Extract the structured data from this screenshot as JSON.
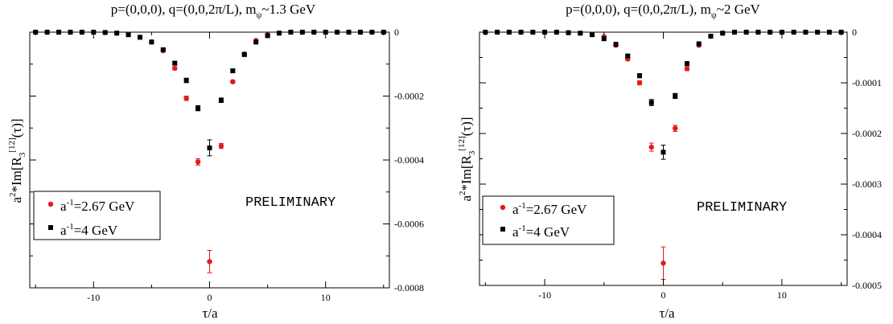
{
  "colors": {
    "red": "#e41a1c",
    "black": "#000000"
  },
  "chart_data": [
    {
      "type": "scatter",
      "title": "p=(0,0,0), q=(0,0,2π/L), m_ψ~1.3 GeV",
      "title_parts": {
        "main": "p=(0,0,0), q=(0,0,2π/L), m",
        "sub": "ψ",
        "tail": "~1.3 GeV"
      },
      "xlabel": "τ/a",
      "ylabel_parts": {
        "pre": "a",
        "sup1": "2",
        "mid": "*Im[R",
        "sub": "3",
        "sup2": "[12]",
        "tail": "(τ)]"
      },
      "xlim": [
        -15.5,
        15.5
      ],
      "ylim": [
        -0.0008,
        0.0
      ],
      "x_ticks": [
        -10,
        0,
        10
      ],
      "x_tick_labels": [
        "-10",
        "0",
        "10"
      ],
      "y_ticks": [
        0,
        -0.0002,
        -0.0004,
        -0.0006,
        -0.0008
      ],
      "y_tick_labels": [
        "0",
        "-0.0002",
        "-0.0004",
        "-0.0006",
        "-0.0008"
      ],
      "y_minor_ticks": [
        -0.0001,
        -0.0003,
        -0.0005,
        -0.0007
      ],
      "y_axis_side": "right",
      "grid": false,
      "legend_placement": "lower-left",
      "annotation": "PRELIMINARY",
      "series": [
        {
          "name": "a^-1=2.67 GeV",
          "legend_parts": {
            "pre": "a",
            "sup": "-1",
            "tail": "=2.67 GeV"
          },
          "color": "#e41a1c",
          "marker": "circle",
          "x": [
            -15,
            -14,
            -13,
            -12,
            -11,
            -10,
            -9,
            -8,
            -7,
            -6,
            -5,
            -4,
            -3,
            -2,
            -1,
            0,
            1,
            2,
            3,
            4,
            5,
            6,
            7,
            8,
            9,
            10,
            11,
            12,
            13,
            14,
            15
          ],
          "y": [
            0,
            0,
            0,
            0,
            0,
            0,
            -1e-06,
            -3e-06,
            -7e-06,
            -1.6e-05,
            -3e-05,
            -5.8e-05,
            -0.000113,
            -0.000207,
            -0.000406,
            -0.000718,
            -0.000356,
            -0.000155,
            -6.8e-05,
            -2.6e-05,
            -8e-06,
            -3e-06,
            0,
            0,
            0,
            0,
            0,
            0,
            0,
            0,
            0
          ],
          "err": [
            0,
            0,
            0,
            0,
            0,
            0,
            0,
            0,
            0,
            1e-06,
            2e-06,
            3e-06,
            5e-06,
            7e-06,
            1e-05,
            3.5e-05,
            8e-06,
            5e-06,
            4e-06,
            2e-06,
            1e-06,
            0,
            0,
            0,
            0,
            0,
            0,
            0,
            0,
            0,
            0
          ]
        },
        {
          "name": "a^-1=4 GeV",
          "legend_parts": {
            "pre": "a",
            "sup": "-1",
            "tail": "=4 GeV"
          },
          "color": "#000000",
          "marker": "square",
          "x": [
            -15,
            -14,
            -13,
            -12,
            -11,
            -10,
            -9,
            -8,
            -7,
            -6,
            -5,
            -4,
            -3,
            -2,
            -1,
            0,
            1,
            2,
            3,
            4,
            5,
            6,
            7,
            8,
            9,
            10,
            11,
            12,
            13,
            14,
            15
          ],
          "y": [
            0,
            0,
            0,
            0,
            0,
            0,
            -1e-06,
            -3e-06,
            -8e-06,
            -1.6e-05,
            -3.1e-05,
            -5.5e-05,
            -9.7e-05,
            -0.000151,
            -0.000238,
            -0.000362,
            -0.000213,
            -0.000121,
            -7e-05,
            -3.1e-05,
            -1.1e-05,
            -3e-06,
            0,
            0,
            0,
            0,
            0,
            0,
            0,
            0,
            0
          ],
          "err": [
            0,
            0,
            0,
            0,
            0,
            0,
            0,
            0,
            0,
            1e-06,
            2e-06,
            4e-06,
            5e-06,
            7e-06,
            8e-06,
            2.5e-05,
            7e-06,
            5e-06,
            4e-06,
            2e-06,
            1e-06,
            0,
            0,
            0,
            0,
            0,
            0,
            0,
            0,
            0,
            0
          ]
        }
      ]
    },
    {
      "type": "scatter",
      "title": "p=(0,0,0), q=(0,0,2π/L), m_ψ~2 GeV",
      "title_parts": {
        "main": "p=(0,0,0), q=(0,0,2π/L), m",
        "sub": "ψ",
        "tail": "~2 GeV"
      },
      "xlabel": "τ/a",
      "ylabel_parts": {
        "pre": "a",
        "sup1": "2",
        "mid": "*Im[R",
        "sub": "3",
        "sup2": "[12]",
        "tail": "(τ)]"
      },
      "xlim": [
        -15.5,
        15.5
      ],
      "ylim": [
        -0.0005,
        0.0
      ],
      "x_ticks": [
        -10,
        0,
        10
      ],
      "x_tick_labels": [
        "-10",
        "0",
        "10"
      ],
      "y_ticks": [
        0,
        -0.0001,
        -0.0002,
        -0.0003,
        -0.0004,
        -0.0005
      ],
      "y_tick_labels": [
        "0",
        "-0.0001",
        "-0.0002",
        "-0.0003",
        "-0.0004",
        "-0.0005"
      ],
      "y_minor_ticks": [
        -5e-05,
        -0.00015,
        -0.00025,
        -0.00035,
        -0.00045
      ],
      "y_axis_side": "right",
      "grid": false,
      "legend_placement": "lower-left",
      "annotation": "PRELIMINARY",
      "series": [
        {
          "name": "a^-1=2.67 GeV",
          "legend_parts": {
            "pre": "a",
            "sup": "-1",
            "tail": "=2.67 GeV"
          },
          "color": "#e41a1c",
          "marker": "circle",
          "x": [
            -15,
            -14,
            -13,
            -12,
            -11,
            -10,
            -9,
            -8,
            -7,
            -6,
            -5,
            -4,
            -3,
            -2,
            -1,
            0,
            1,
            2,
            3,
            4,
            5,
            6,
            7,
            8,
            9,
            10,
            11,
            12,
            13,
            14,
            15
          ],
          "y": [
            0,
            0,
            0,
            0,
            0,
            0,
            0,
            -1e-06,
            -2e-06,
            -4e-06,
            -9e-06,
            -2.6e-05,
            -5.3e-05,
            -0.0001,
            -0.000227,
            -0.000456,
            -0.00019,
            -7.2e-05,
            -2.6e-05,
            -8e-06,
            -2e-06,
            0,
            0,
            0,
            0,
            0,
            0,
            0,
            0,
            0,
            0
          ],
          "err": [
            0,
            0,
            0,
            0,
            0,
            0,
            0,
            0,
            0,
            0,
            1e-06,
            2e-06,
            3e-06,
            4e-06,
            8e-06,
            3.2e-05,
            6e-06,
            4e-06,
            2e-06,
            1e-06,
            0,
            0,
            0,
            0,
            0,
            0,
            0,
            0,
            0,
            0,
            0
          ]
        },
        {
          "name": "a^-1=4 GeV",
          "legend_parts": {
            "pre": "a",
            "sup": "-1",
            "tail": "=4 GeV"
          },
          "color": "#000000",
          "marker": "square",
          "x": [
            -15,
            -14,
            -13,
            -12,
            -11,
            -10,
            -9,
            -8,
            -7,
            -6,
            -5,
            -4,
            -3,
            -2,
            -1,
            0,
            1,
            2,
            3,
            4,
            5,
            6,
            7,
            8,
            9,
            10,
            11,
            12,
            13,
            14,
            15
          ],
          "y": [
            0,
            0,
            0,
            0,
            0,
            0,
            0,
            -1e-06,
            -2e-06,
            -5e-06,
            -1.3e-05,
            -2.4e-05,
            -4.7e-05,
            -8.6e-05,
            -0.000139,
            -0.000237,
            -0.000126,
            -6.2e-05,
            -2.3e-05,
            -8e-06,
            -2e-06,
            0,
            0,
            0,
            0,
            0,
            0,
            0,
            0,
            0,
            0
          ],
          "err": [
            0,
            0,
            0,
            0,
            0,
            0,
            0,
            0,
            0,
            0,
            1e-06,
            2e-06,
            3e-06,
            4e-06,
            6e-06,
            1.4e-05,
            5e-06,
            3e-06,
            2e-06,
            1e-06,
            0,
            0,
            0,
            0,
            0,
            0,
            0,
            0,
            0,
            0,
            0
          ]
        }
      ]
    }
  ]
}
